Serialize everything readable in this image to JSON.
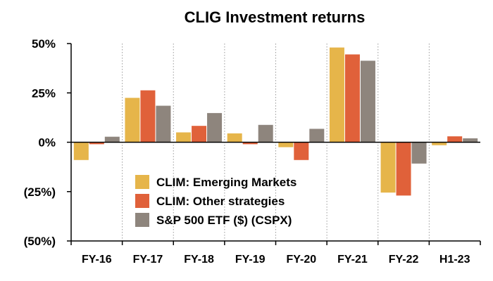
{
  "chart_data": {
    "type": "bar",
    "title": "CLIG Investment returns",
    "xlabel": "",
    "ylabel": "",
    "categories": [
      "FY-16",
      "FY-17",
      "FY-18",
      "FY-19",
      "FY-20",
      "FY-21",
      "FY-22",
      "H1-23"
    ],
    "series": [
      {
        "name": "CLIM: Emerging Markets",
        "color": "#E6B54A",
        "values": [
          -9,
          22.5,
          5,
          4.5,
          -2.5,
          48,
          -25.5,
          -1.5
        ]
      },
      {
        "name": "CLIM: Other strategies",
        "color": "#E0613A",
        "values": [
          -1,
          26.3,
          8.3,
          -1,
          -9,
          44.5,
          -27,
          3
        ]
      },
      {
        "name": "S&P 500 ETF ($) (CSPX)",
        "color": "#8E857D",
        "values": [
          2.8,
          18.5,
          14.8,
          8.8,
          6.8,
          41.3,
          -10.8,
          2
        ]
      }
    ],
    "ylim": [
      -50,
      50
    ],
    "yticks": [
      50,
      25,
      0,
      -25,
      -50
    ],
    "ytick_labels": [
      "50%",
      "25%",
      "0%",
      "(25%)",
      "(50%)"
    ],
    "grid": {
      "vertical_dotted": true,
      "horizontal": false
    },
    "legend": {
      "placement": "bottom-center-inside"
    }
  }
}
